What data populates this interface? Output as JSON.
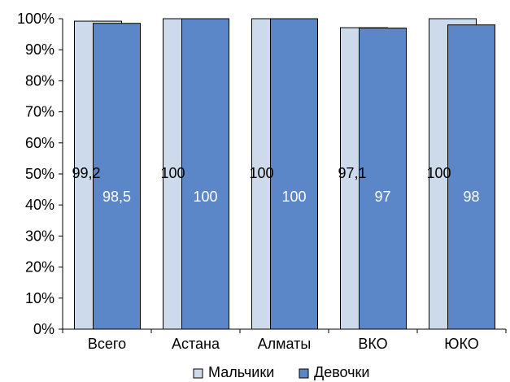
{
  "chart_data": {
    "type": "bar",
    "title": "",
    "xlabel": "",
    "ylabel": "",
    "categories": [
      "Всего",
      "Астана",
      "Алматы",
      "ВКО",
      "ЮКО"
    ],
    "series": [
      {
        "name": "Мальчики",
        "values": [
          99.2,
          100,
          100,
          97.1,
          100
        ],
        "labels": [
          "99,2",
          "100",
          "100",
          "97,1",
          "100"
        ],
        "color": "#ccdaeb",
        "label_color": "#000000"
      },
      {
        "name": "Девочки",
        "values": [
          98.5,
          100,
          100,
          97,
          98
        ],
        "labels": [
          "98,5",
          "100",
          "100",
          "97",
          "98"
        ],
        "color": "#5b87c8",
        "label_color": "#ffffff"
      }
    ],
    "ylim": [
      0,
      100
    ],
    "yticks": [
      "0%",
      "10%",
      "20%",
      "30%",
      "40%",
      "50%",
      "60%",
      "70%",
      "80%",
      "90%",
      "100%"
    ],
    "grid": false,
    "legend_position": "bottom"
  }
}
